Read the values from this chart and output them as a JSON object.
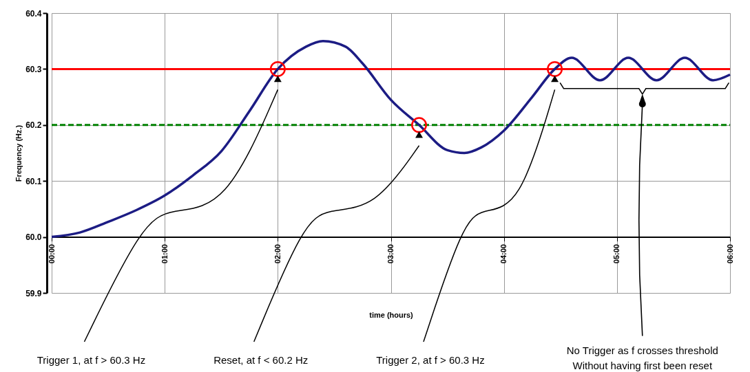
{
  "chart_data": {
    "type": "line",
    "xlabel": "time (hours)",
    "ylabel": "Frequency (Hz.)",
    "xlim": [
      0,
      6
    ],
    "xticks": [
      {
        "value": 0,
        "label": "00:00"
      },
      {
        "value": 1,
        "label": "01:00"
      },
      {
        "value": 2,
        "label": "02:00"
      },
      {
        "value": 3,
        "label": "03:00"
      },
      {
        "value": 4,
        "label": "04:00"
      },
      {
        "value": 5,
        "label": "05:00"
      },
      {
        "value": 6,
        "label": "06:00"
      }
    ],
    "ylim": [
      59.9,
      60.4
    ],
    "yticks": [
      59.9,
      {
        "value": 60,
        "label": "60.0"
      },
      60.1,
      60.2,
      60.3,
      60.4
    ],
    "grid": true,
    "series": [
      {
        "color": "#1c1c84",
        "marker": "none",
        "line_style": "solid",
        "x": [
          0,
          0.25,
          0.5,
          0.75,
          1.0,
          1.25,
          1.5,
          1.75,
          2.0,
          2.25,
          2.4,
          2.6,
          2.75,
          3.0,
          3.25,
          3.5,
          3.65,
          3.8,
          4.0,
          4.25,
          4.45,
          4.6,
          4.85,
          5.1,
          5.35,
          5.6,
          5.85,
          6.0
        ],
        "values": [
          60.0,
          60.008,
          60.027,
          60.048,
          60.074,
          60.11,
          60.153,
          60.225,
          60.3,
          60.34,
          60.35,
          60.34,
          60.31,
          60.245,
          60.2,
          60.155,
          60.15,
          60.16,
          60.19,
          60.25,
          60.3,
          60.32,
          60.28,
          60.32,
          60.28,
          60.32,
          60.28,
          60.29
        ]
      },
      {
        "type": "scatter",
        "color": "#ff0000",
        "marker": "circle",
        "x": [
          2.0,
          3.25,
          4.45
        ],
        "values": [
          60.3,
          60.2,
          60.3
        ]
      }
    ],
    "ref_lines": [
      {
        "axis": "y",
        "value": 60.3,
        "color": "#ff0000",
        "line_style": "solid"
      },
      {
        "axis": "y",
        "value": 60.2,
        "color": "#008000",
        "line_style": "dashed"
      }
    ],
    "annotations": [
      "Trigger 1, at f > 60.3 Hz",
      "Reset, at f < 60.2 Hz",
      "Trigger 2, at f > 60.3 Hz",
      "No Trigger as f crosses threshold\nWithout having first been reset"
    ]
  }
}
